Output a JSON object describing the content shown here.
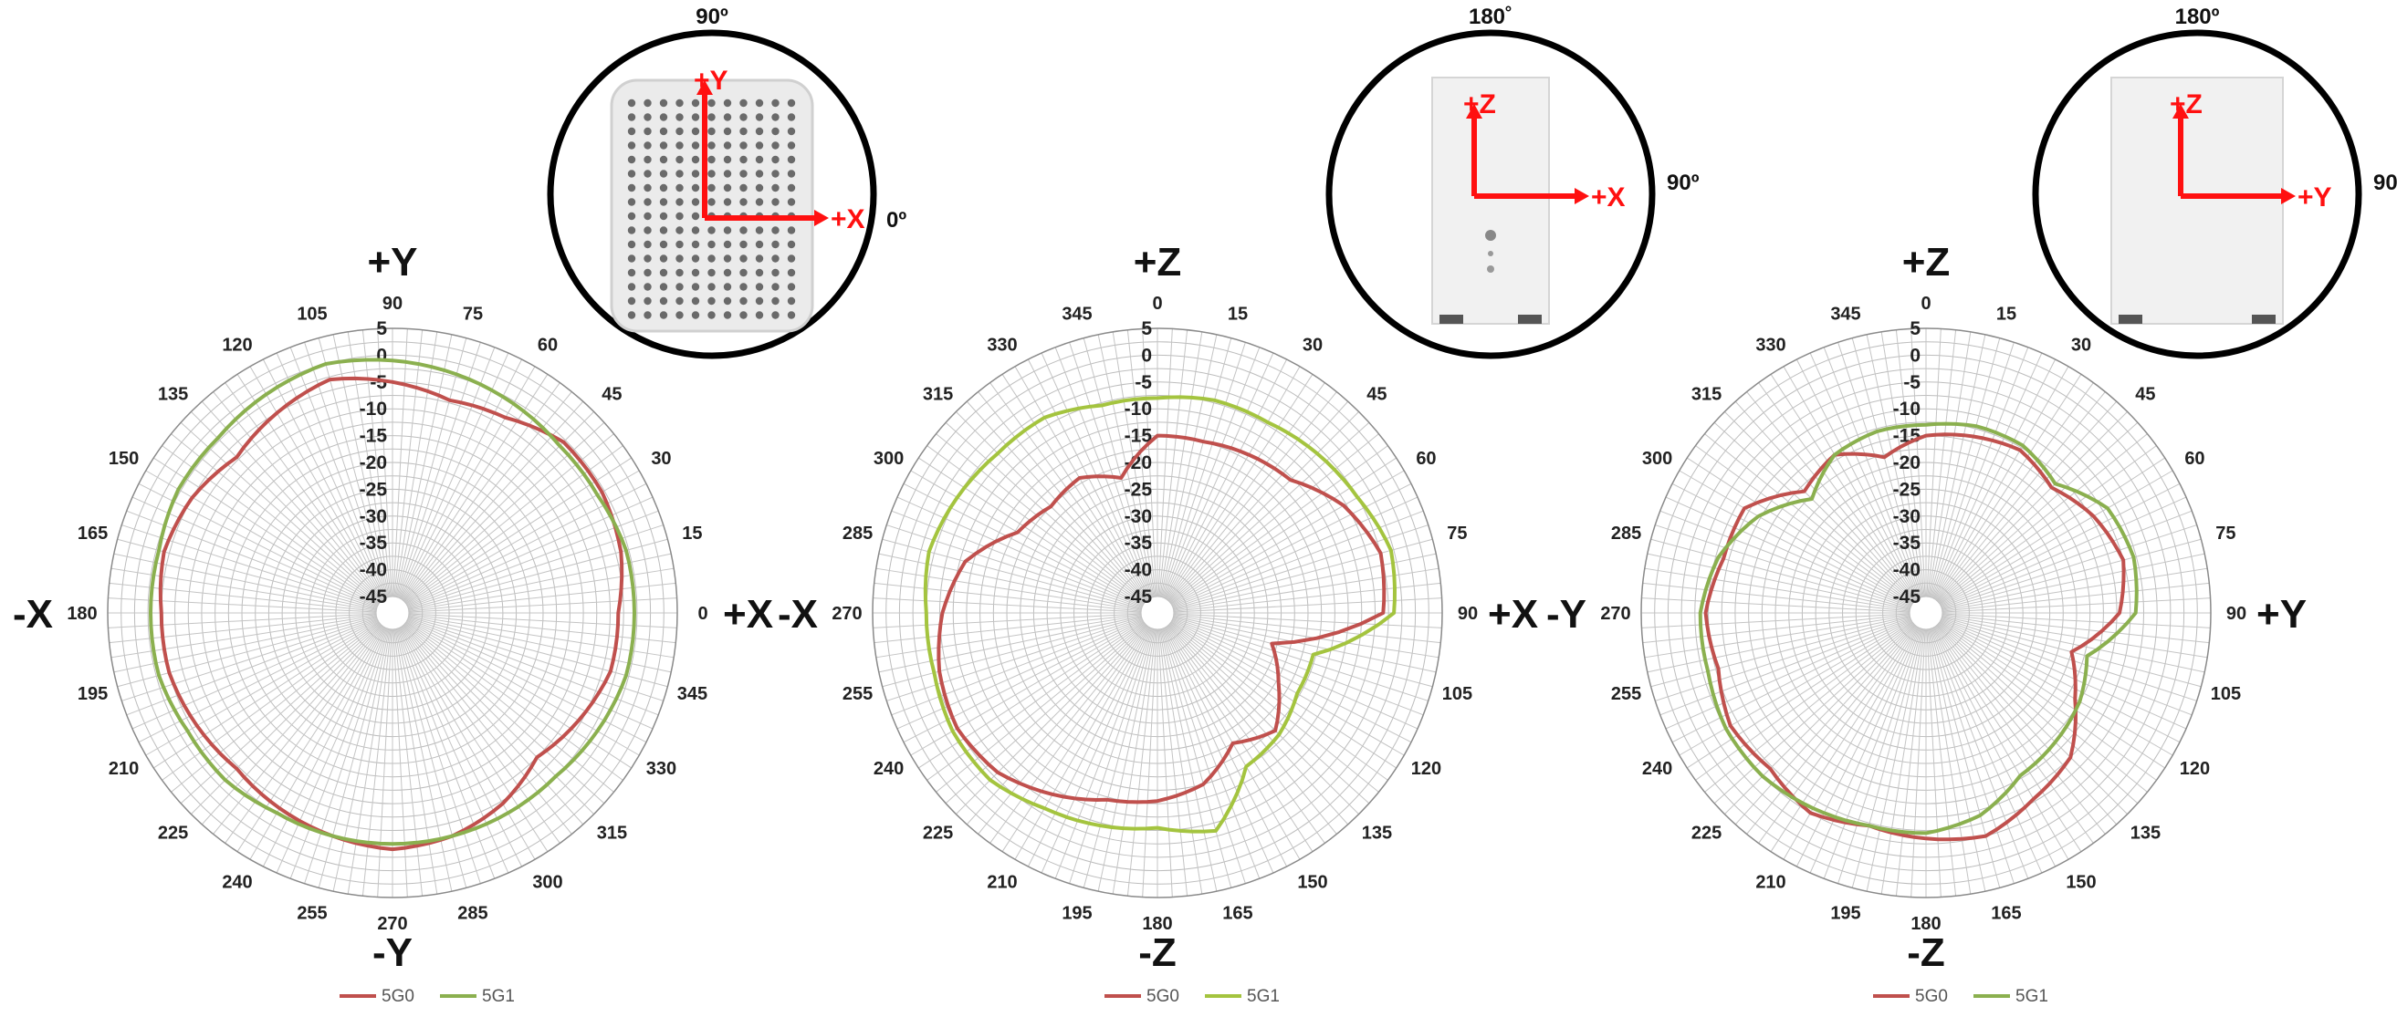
{
  "chart_data": [
    {
      "type": "polar-line",
      "title": "",
      "r_ticks": [
        "5",
        "0",
        "-5",
        "-10",
        "-15",
        "-20",
        "-25",
        "-30",
        "-35",
        "-40",
        "-45"
      ],
      "rlim": [
        -45,
        5
      ],
      "angle_labels": [
        "0",
        "15",
        "30",
        "45",
        "60",
        "75",
        "90",
        "105",
        "120",
        "135",
        "150",
        "165",
        "180",
        "195",
        "210",
        "225",
        "240",
        "255",
        "270",
        "285",
        "300",
        "315",
        "330",
        "345"
      ],
      "axis_labels": {
        "top": "+Y",
        "right": "+X",
        "bottom": "-Y",
        "left": "-X"
      },
      "legend": [
        "5G0",
        "5G1"
      ],
      "series": [
        {
          "name": "5G0",
          "color": "#c0504d",
          "angles": [
            0,
            15,
            30,
            45,
            60,
            75,
            90,
            105,
            120,
            135,
            150,
            165,
            180,
            195,
            210,
            225,
            240,
            255,
            270,
            285,
            300,
            315,
            330,
            345
          ],
          "values": [
            -6,
            -4,
            -3,
            -3,
            -6,
            -7,
            -5,
            -3,
            -5,
            -7,
            -5,
            -4,
            -5,
            -5,
            -6,
            -7,
            -6,
            -5,
            -4,
            -5,
            -7,
            -10,
            -8,
            -6
          ]
        },
        {
          "name": "5G1",
          "color": "#8bb04f",
          "angles": [
            0,
            15,
            30,
            45,
            60,
            75,
            90,
            105,
            120,
            135,
            150,
            165,
            180,
            195,
            210,
            225,
            240,
            255,
            270,
            285,
            300,
            315,
            330,
            345
          ],
          "values": [
            -3,
            -3,
            -4,
            -4,
            -3,
            -2,
            -1,
            0,
            -1,
            -2,
            -2,
            -3,
            -3,
            -3,
            -4,
            -4,
            -5,
            -5,
            -5,
            -5,
            -5,
            -5,
            -4,
            -3
          ]
        }
      ],
      "inset": {
        "top_label": "90º",
        "side_label": "0º",
        "axis_h": "+X",
        "axis_v": "+Y"
      }
    },
    {
      "type": "polar-line",
      "title": "",
      "r_ticks": [
        "5",
        "0",
        "-5",
        "-10",
        "-15",
        "-20",
        "-25",
        "-30",
        "-35",
        "-40",
        "-45"
      ],
      "rlim": [
        -45,
        5
      ],
      "angle_labels": [
        "90",
        "75",
        "60",
        "45",
        "30",
        "15",
        "0",
        "345",
        "330",
        "315",
        "300",
        "285",
        "270",
        "255",
        "240",
        "225",
        "210",
        "195",
        "180",
        "165",
        "150",
        "135",
        "120",
        "105"
      ],
      "axis_labels": {
        "top": "+Z",
        "right": "+X",
        "bottom": "-Z",
        "left": "-X"
      },
      "legend": [
        "5G0",
        "5G1"
      ],
      "series": [
        {
          "name": "5G0",
          "color": "#c0504d",
          "angles": [
            0,
            15,
            30,
            45,
            60,
            75,
            90,
            105,
            120,
            135,
            150,
            165,
            180,
            195,
            210,
            225,
            240,
            255,
            270,
            285,
            300,
            315,
            330,
            345
          ],
          "values": [
            -6,
            -5,
            -8,
            -13,
            -14,
            -15,
            -15,
            -22,
            -19,
            -20,
            -18,
            -11,
            -8,
            -6,
            -5,
            -6,
            -9,
            -12,
            -13,
            -15,
            -20,
            -17,
            -22,
            -26
          ]
        },
        {
          "name": "5G1",
          "color": "#a4c43f",
          "angles": [
            0,
            15,
            30,
            45,
            60,
            75,
            90,
            105,
            120,
            135,
            150,
            165,
            180,
            195,
            210,
            225,
            240,
            255,
            270,
            285,
            300,
            315,
            330,
            345
          ],
          "values": [
            -4,
            -3,
            -5,
            -6,
            -7,
            -7,
            -8,
            -8,
            -6,
            -6,
            -5,
            -4,
            -5,
            -5,
            -4,
            -4,
            -6,
            -7,
            -8,
            -6,
            -15,
            -16,
            -18,
            -18
          ]
        }
      ],
      "inset": {
        "top_label": "180˚",
        "side_label": "90º",
        "axis_h": "+X",
        "axis_v": "+Z"
      }
    },
    {
      "type": "polar-line",
      "title": "",
      "r_ticks": [
        "5",
        "0",
        "-5",
        "-10",
        "-15",
        "-20",
        "-25",
        "-30",
        "-35",
        "-40",
        "-45"
      ],
      "rlim": [
        -45,
        5
      ],
      "angle_labels": [
        "90",
        "75",
        "60",
        "45",
        "30",
        "15",
        "0",
        "345",
        "330",
        "315",
        "300",
        "285",
        "270",
        "255",
        "240",
        "225",
        "210",
        "195",
        "180",
        "165",
        "150",
        "135",
        "120",
        "105"
      ],
      "axis_labels": {
        "top": "+Z",
        "right": "+Y",
        "bottom": "-Z",
        "left": "-Y"
      },
      "legend": [
        "5G0",
        "5G1"
      ],
      "series": [
        {
          "name": "5G0",
          "color": "#c0504d",
          "angles": [
            0,
            15,
            30,
            45,
            60,
            75,
            90,
            105,
            120,
            135,
            150,
            165,
            180,
            195,
            210,
            225,
            240,
            255,
            270,
            285,
            300,
            315,
            330,
            345
          ],
          "values": [
            -12,
            -10,
            -12,
            -15,
            -13,
            -14,
            -15,
            -18,
            -14,
            -16,
            -9,
            -9,
            -7,
            -8,
            -6,
            -7,
            -5,
            -7,
            -6,
            -5,
            -8,
            -10,
            -16,
            -20
          ]
        },
        {
          "name": "5G1",
          "color": "#8bb04f",
          "angles": [
            0,
            15,
            30,
            45,
            60,
            75,
            90,
            105,
            120,
            135,
            150,
            165,
            180,
            195,
            210,
            225,
            240,
            255,
            270,
            285,
            300,
            315,
            330,
            345
          ],
          "values": [
            -9,
            -8,
            -9,
            -14,
            -12,
            -12,
            -13,
            -13,
            -14,
            -18,
            -12,
            -8,
            -6,
            -6,
            -5,
            -5,
            -6,
            -7,
            -7,
            -9,
            -13,
            -14,
            -15,
            -17
          ]
        }
      ],
      "inset": {
        "top_label": "180º",
        "side_label": "90",
        "axis_h": "+Y",
        "axis_v": "+Z"
      }
    }
  ],
  "colors": {
    "series_5g0": "#c0504d",
    "series_5g1": "#8bb04f",
    "grid": "#b5b5b5",
    "inset_axes": "#ff1010"
  }
}
